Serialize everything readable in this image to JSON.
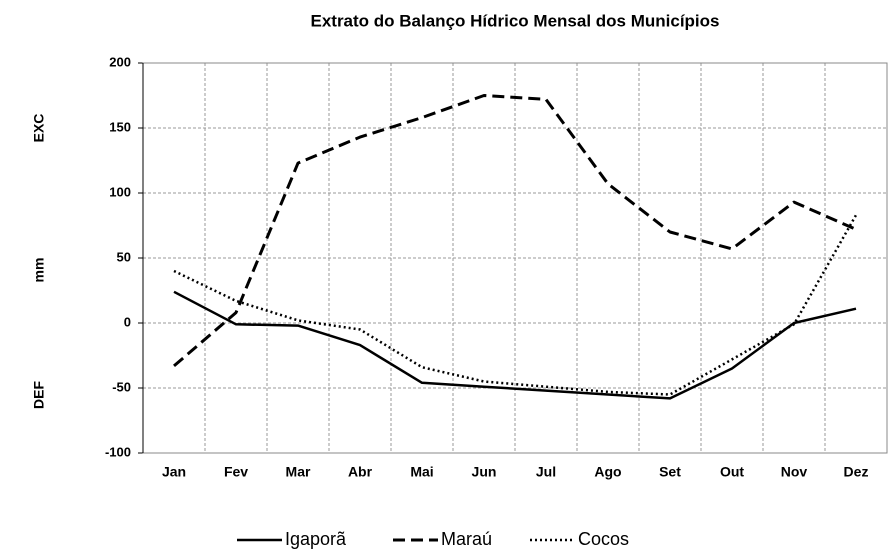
{
  "chart_data": {
    "type": "line",
    "title": "Extrato do Balanço Hídrico Mensal dos Municípios",
    "ylabel": "mm",
    "annotations": [
      "EXC",
      "DEF"
    ],
    "categories": [
      "Jan",
      "Fev",
      "Mar",
      "Abr",
      "Mai",
      "Jun",
      "Jul",
      "Ago",
      "Set",
      "Out",
      "Nov",
      "Dez"
    ],
    "series": [
      {
        "name": "Igaporã",
        "color": "#000000",
        "dash": "solid",
        "values": [
          24,
          -1,
          -2,
          -17,
          -46,
          -49,
          -52,
          -55,
          -58,
          -35,
          0,
          11
        ]
      },
      {
        "name": "Maraú",
        "color": "#000000",
        "dash": "dashed",
        "values": [
          -33,
          8,
          123,
          143,
          158,
          175,
          172,
          107,
          70,
          57,
          93,
          72
        ]
      },
      {
        "name": "Cocos",
        "color": "#000000",
        "dash": "dotted",
        "values": [
          40,
          17,
          2,
          -5,
          -34,
          -45,
          -49,
          -53,
          -55,
          -28,
          -1,
          83
        ]
      }
    ],
    "ylim": [
      -100,
      200
    ],
    "yticks": [
      -100,
      -50,
      0,
      50,
      100,
      150,
      200
    ],
    "grid": true,
    "legend": "bottom"
  }
}
